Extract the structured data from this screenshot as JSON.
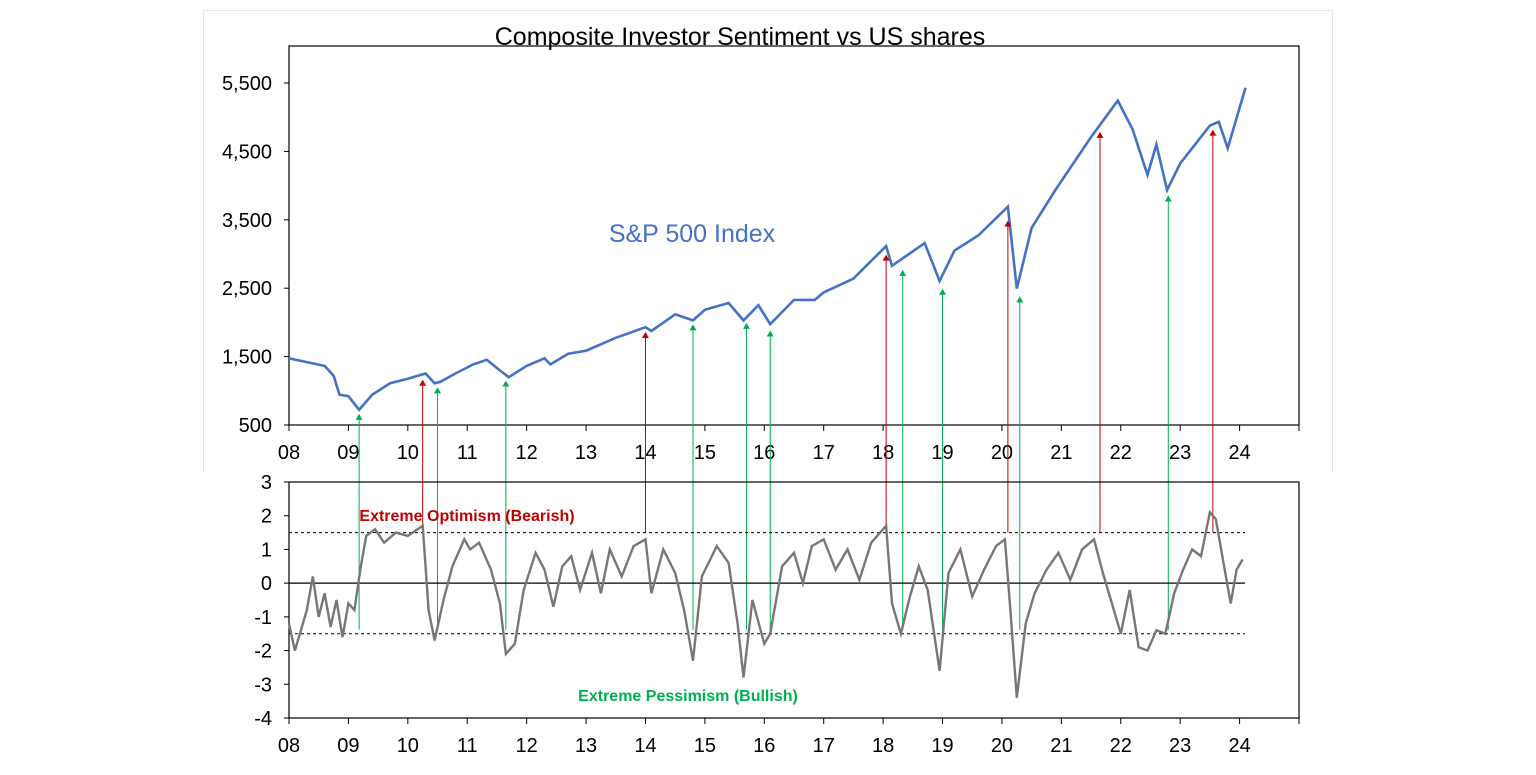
{
  "chart_data": [
    {
      "type": "line",
      "title": "Composite Investor Sentiment vs US shares",
      "series_label": "S&P 500 Index",
      "color": "#4472c4",
      "yticks": [
        "5,500",
        "4,500",
        "3,500",
        "2,500",
        "1,500",
        "500"
      ],
      "ylim": [
        500,
        5500
      ],
      "xticks": [
        "08",
        "09",
        "10",
        "11",
        "12",
        "13",
        "14",
        "15",
        "16",
        "17",
        "18",
        "19",
        "20",
        "21",
        "22",
        "23",
        "24"
      ],
      "xlim": [
        2008,
        2025
      ],
      "series": [
        {
          "name": "S&P 500 Index",
          "points": [
            [
              2008.0,
              1380
            ],
            [
              2008.3,
              1330
            ],
            [
              2008.6,
              1280
            ],
            [
              2008.75,
              1150
            ],
            [
              2008.85,
              900
            ],
            [
              2009.0,
              880
            ],
            [
              2009.18,
              700
            ],
            [
              2009.4,
              900
            ],
            [
              2009.7,
              1050
            ],
            [
              2010.0,
              1110
            ],
            [
              2010.3,
              1180
            ],
            [
              2010.45,
              1050
            ],
            [
              2010.55,
              1070
            ],
            [
              2010.8,
              1180
            ],
            [
              2011.1,
              1300
            ],
            [
              2011.33,
              1360
            ],
            [
              2011.58,
              1200
            ],
            [
              2011.7,
              1130
            ],
            [
              2012.0,
              1280
            ],
            [
              2012.3,
              1380
            ],
            [
              2012.4,
              1300
            ],
            [
              2012.7,
              1440
            ],
            [
              2013.0,
              1480
            ],
            [
              2013.5,
              1650
            ],
            [
              2014.0,
              1790
            ],
            [
              2014.1,
              1740
            ],
            [
              2014.5,
              1960
            ],
            [
              2014.8,
              1880
            ],
            [
              2015.0,
              2020
            ],
            [
              2015.4,
              2110
            ],
            [
              2015.65,
              1880
            ],
            [
              2015.9,
              2080
            ],
            [
              2016.1,
              1830
            ],
            [
              2016.5,
              2150
            ],
            [
              2016.85,
              2150
            ],
            [
              2017.0,
              2250
            ],
            [
              2017.5,
              2430
            ],
            [
              2018.05,
              2860
            ],
            [
              2018.15,
              2600
            ],
            [
              2018.7,
              2900
            ],
            [
              2018.95,
              2400
            ],
            [
              2019.2,
              2800
            ],
            [
              2019.6,
              3000
            ],
            [
              2020.1,
              3380
            ],
            [
              2020.25,
              2300
            ],
            [
              2020.5,
              3100
            ],
            [
              2020.9,
              3600
            ],
            [
              2021.5,
              4300
            ],
            [
              2021.95,
              4780
            ],
            [
              2022.2,
              4400
            ],
            [
              2022.45,
              3800
            ],
            [
              2022.6,
              4200
            ],
            [
              2022.78,
              3600
            ],
            [
              2023.0,
              3950
            ],
            [
              2023.5,
              4450
            ],
            [
              2023.65,
              4500
            ],
            [
              2023.8,
              4150
            ],
            [
              2024.1,
              4950
            ]
          ]
        }
      ],
      "markers": [
        {
          "x": 2009.18,
          "y": 700,
          "kind": "pessimism"
        },
        {
          "x": 2010.25,
          "y": 1150,
          "kind": "optimism"
        },
        {
          "x": 2010.5,
          "y": 1050,
          "kind": "pessimism"
        },
        {
          "x": 2011.65,
          "y": 1140,
          "kind": "pessimism"
        },
        {
          "x": 2014.0,
          "y": 1780,
          "kind": "optimism"
        },
        {
          "x": 2014.8,
          "y": 1880,
          "kind": "pessimism"
        },
        {
          "x": 2015.7,
          "y": 1900,
          "kind": "pessimism"
        },
        {
          "x": 2016.1,
          "y": 1800,
          "kind": "pessimism"
        },
        {
          "x": 2018.05,
          "y": 2800,
          "kind": "optimism"
        },
        {
          "x": 2018.33,
          "y": 2600,
          "kind": "pessimism"
        },
        {
          "x": 2019.0,
          "y": 2350,
          "kind": "pessimism"
        },
        {
          "x": 2020.1,
          "y": 3250,
          "kind": "optimism"
        },
        {
          "x": 2020.3,
          "y": 2250,
          "kind": "pessimism"
        },
        {
          "x": 2021.65,
          "y": 4420,
          "kind": "optimism"
        },
        {
          "x": 2022.8,
          "y": 3580,
          "kind": "pessimism"
        },
        {
          "x": 2023.55,
          "y": 4450,
          "kind": "optimism"
        }
      ]
    },
    {
      "type": "line",
      "color": "#777777",
      "yticks": [
        "3",
        "2",
        "1",
        "0",
        "-1",
        "-2",
        "-3",
        "-4"
      ],
      "ylim": [
        -4,
        3
      ],
      "xticks": [
        "08",
        "09",
        "10",
        "11",
        "12",
        "13",
        "14",
        "15",
        "16",
        "17",
        "18",
        "19",
        "20",
        "21",
        "22",
        "23",
        "24"
      ],
      "xlim": [
        2008,
        2025
      ],
      "thresholds": [
        1.5,
        -1.5
      ],
      "annotations": [
        {
          "text": "Extreme Optimism (Bearish)",
          "kind": "optimism"
        },
        {
          "text": "Extreme Pessimism (Bullish)",
          "kind": "pessimism"
        }
      ],
      "series": [
        {
          "name": "",
          "points": [
            [
              2008.0,
              -1.2
            ],
            [
              2008.1,
              -2.0
            ],
            [
              2008.2,
              -1.4
            ],
            [
              2008.3,
              -0.8
            ],
            [
              2008.4,
              0.2
            ],
            [
              2008.5,
              -1.0
            ],
            [
              2008.6,
              -0.3
            ],
            [
              2008.7,
              -1.3
            ],
            [
              2008.8,
              -0.5
            ],
            [
              2008.9,
              -1.6
            ],
            [
              2009.0,
              -0.6
            ],
            [
              2009.1,
              -0.8
            ],
            [
              2009.2,
              0.4
            ],
            [
              2009.3,
              1.4
            ],
            [
              2009.45,
              1.6
            ],
            [
              2009.6,
              1.2
            ],
            [
              2009.8,
              1.5
            ],
            [
              2010.0,
              1.4
            ],
            [
              2010.25,
              1.7
            ],
            [
              2010.35,
              -0.8
            ],
            [
              2010.45,
              -1.7
            ],
            [
              2010.6,
              -0.5
            ],
            [
              2010.75,
              0.5
            ],
            [
              2010.95,
              1.3
            ],
            [
              2011.05,
              1.0
            ],
            [
              2011.2,
              1.2
            ],
            [
              2011.4,
              0.4
            ],
            [
              2011.55,
              -0.6
            ],
            [
              2011.65,
              -2.1
            ],
            [
              2011.8,
              -1.8
            ],
            [
              2011.95,
              -0.2
            ],
            [
              2012.15,
              0.9
            ],
            [
              2012.3,
              0.4
            ],
            [
              2012.45,
              -0.7
            ],
            [
              2012.6,
              0.5
            ],
            [
              2012.75,
              0.8
            ],
            [
              2012.9,
              -0.2
            ],
            [
              2013.1,
              0.9
            ],
            [
              2013.25,
              -0.3
            ],
            [
              2013.4,
              1.0
            ],
            [
              2013.6,
              0.2
            ],
            [
              2013.8,
              1.1
            ],
            [
              2014.0,
              1.3
            ],
            [
              2014.1,
              -0.3
            ],
            [
              2014.3,
              1.0
            ],
            [
              2014.5,
              0.3
            ],
            [
              2014.65,
              -0.8
            ],
            [
              2014.8,
              -2.3
            ],
            [
              2014.95,
              0.2
            ],
            [
              2015.2,
              1.1
            ],
            [
              2015.4,
              0.6
            ],
            [
              2015.55,
              -1.2
            ],
            [
              2015.65,
              -2.8
            ],
            [
              2015.8,
              -0.5
            ],
            [
              2016.0,
              -1.8
            ],
            [
              2016.1,
              -1.5
            ],
            [
              2016.3,
              0.5
            ],
            [
              2016.5,
              0.9
            ],
            [
              2016.65,
              0.0
            ],
            [
              2016.8,
              1.1
            ],
            [
              2017.0,
              1.3
            ],
            [
              2017.2,
              0.4
            ],
            [
              2017.4,
              1.0
            ],
            [
              2017.6,
              0.1
            ],
            [
              2017.8,
              1.2
            ],
            [
              2018.05,
              1.7
            ],
            [
              2018.15,
              -0.6
            ],
            [
              2018.3,
              -1.5
            ],
            [
              2018.45,
              -0.4
            ],
            [
              2018.6,
              0.5
            ],
            [
              2018.75,
              -0.2
            ],
            [
              2018.95,
              -2.6
            ],
            [
              2019.1,
              0.3
            ],
            [
              2019.3,
              1.0
            ],
            [
              2019.5,
              -0.4
            ],
            [
              2019.7,
              0.4
            ],
            [
              2019.9,
              1.1
            ],
            [
              2020.05,
              1.3
            ],
            [
              2020.15,
              -1.0
            ],
            [
              2020.25,
              -3.4
            ],
            [
              2020.4,
              -1.2
            ],
            [
              2020.55,
              -0.3
            ],
            [
              2020.75,
              0.4
            ],
            [
              2020.95,
              0.9
            ],
            [
              2021.15,
              0.1
            ],
            [
              2021.35,
              1.0
            ],
            [
              2021.55,
              1.3
            ],
            [
              2021.7,
              0.3
            ],
            [
              2021.85,
              -0.6
            ],
            [
              2022.0,
              -1.5
            ],
            [
              2022.15,
              -0.2
            ],
            [
              2022.3,
              -1.9
            ],
            [
              2022.45,
              -2.0
            ],
            [
              2022.6,
              -1.4
            ],
            [
              2022.75,
              -1.5
            ],
            [
              2022.9,
              -0.3
            ],
            [
              2023.05,
              0.4
            ],
            [
              2023.2,
              1.0
            ],
            [
              2023.35,
              0.8
            ],
            [
              2023.5,
              2.1
            ],
            [
              2023.6,
              1.9
            ],
            [
              2023.75,
              0.4
            ],
            [
              2023.85,
              -0.6
            ],
            [
              2023.95,
              0.4
            ],
            [
              2024.05,
              0.7
            ]
          ]
        }
      ]
    }
  ]
}
